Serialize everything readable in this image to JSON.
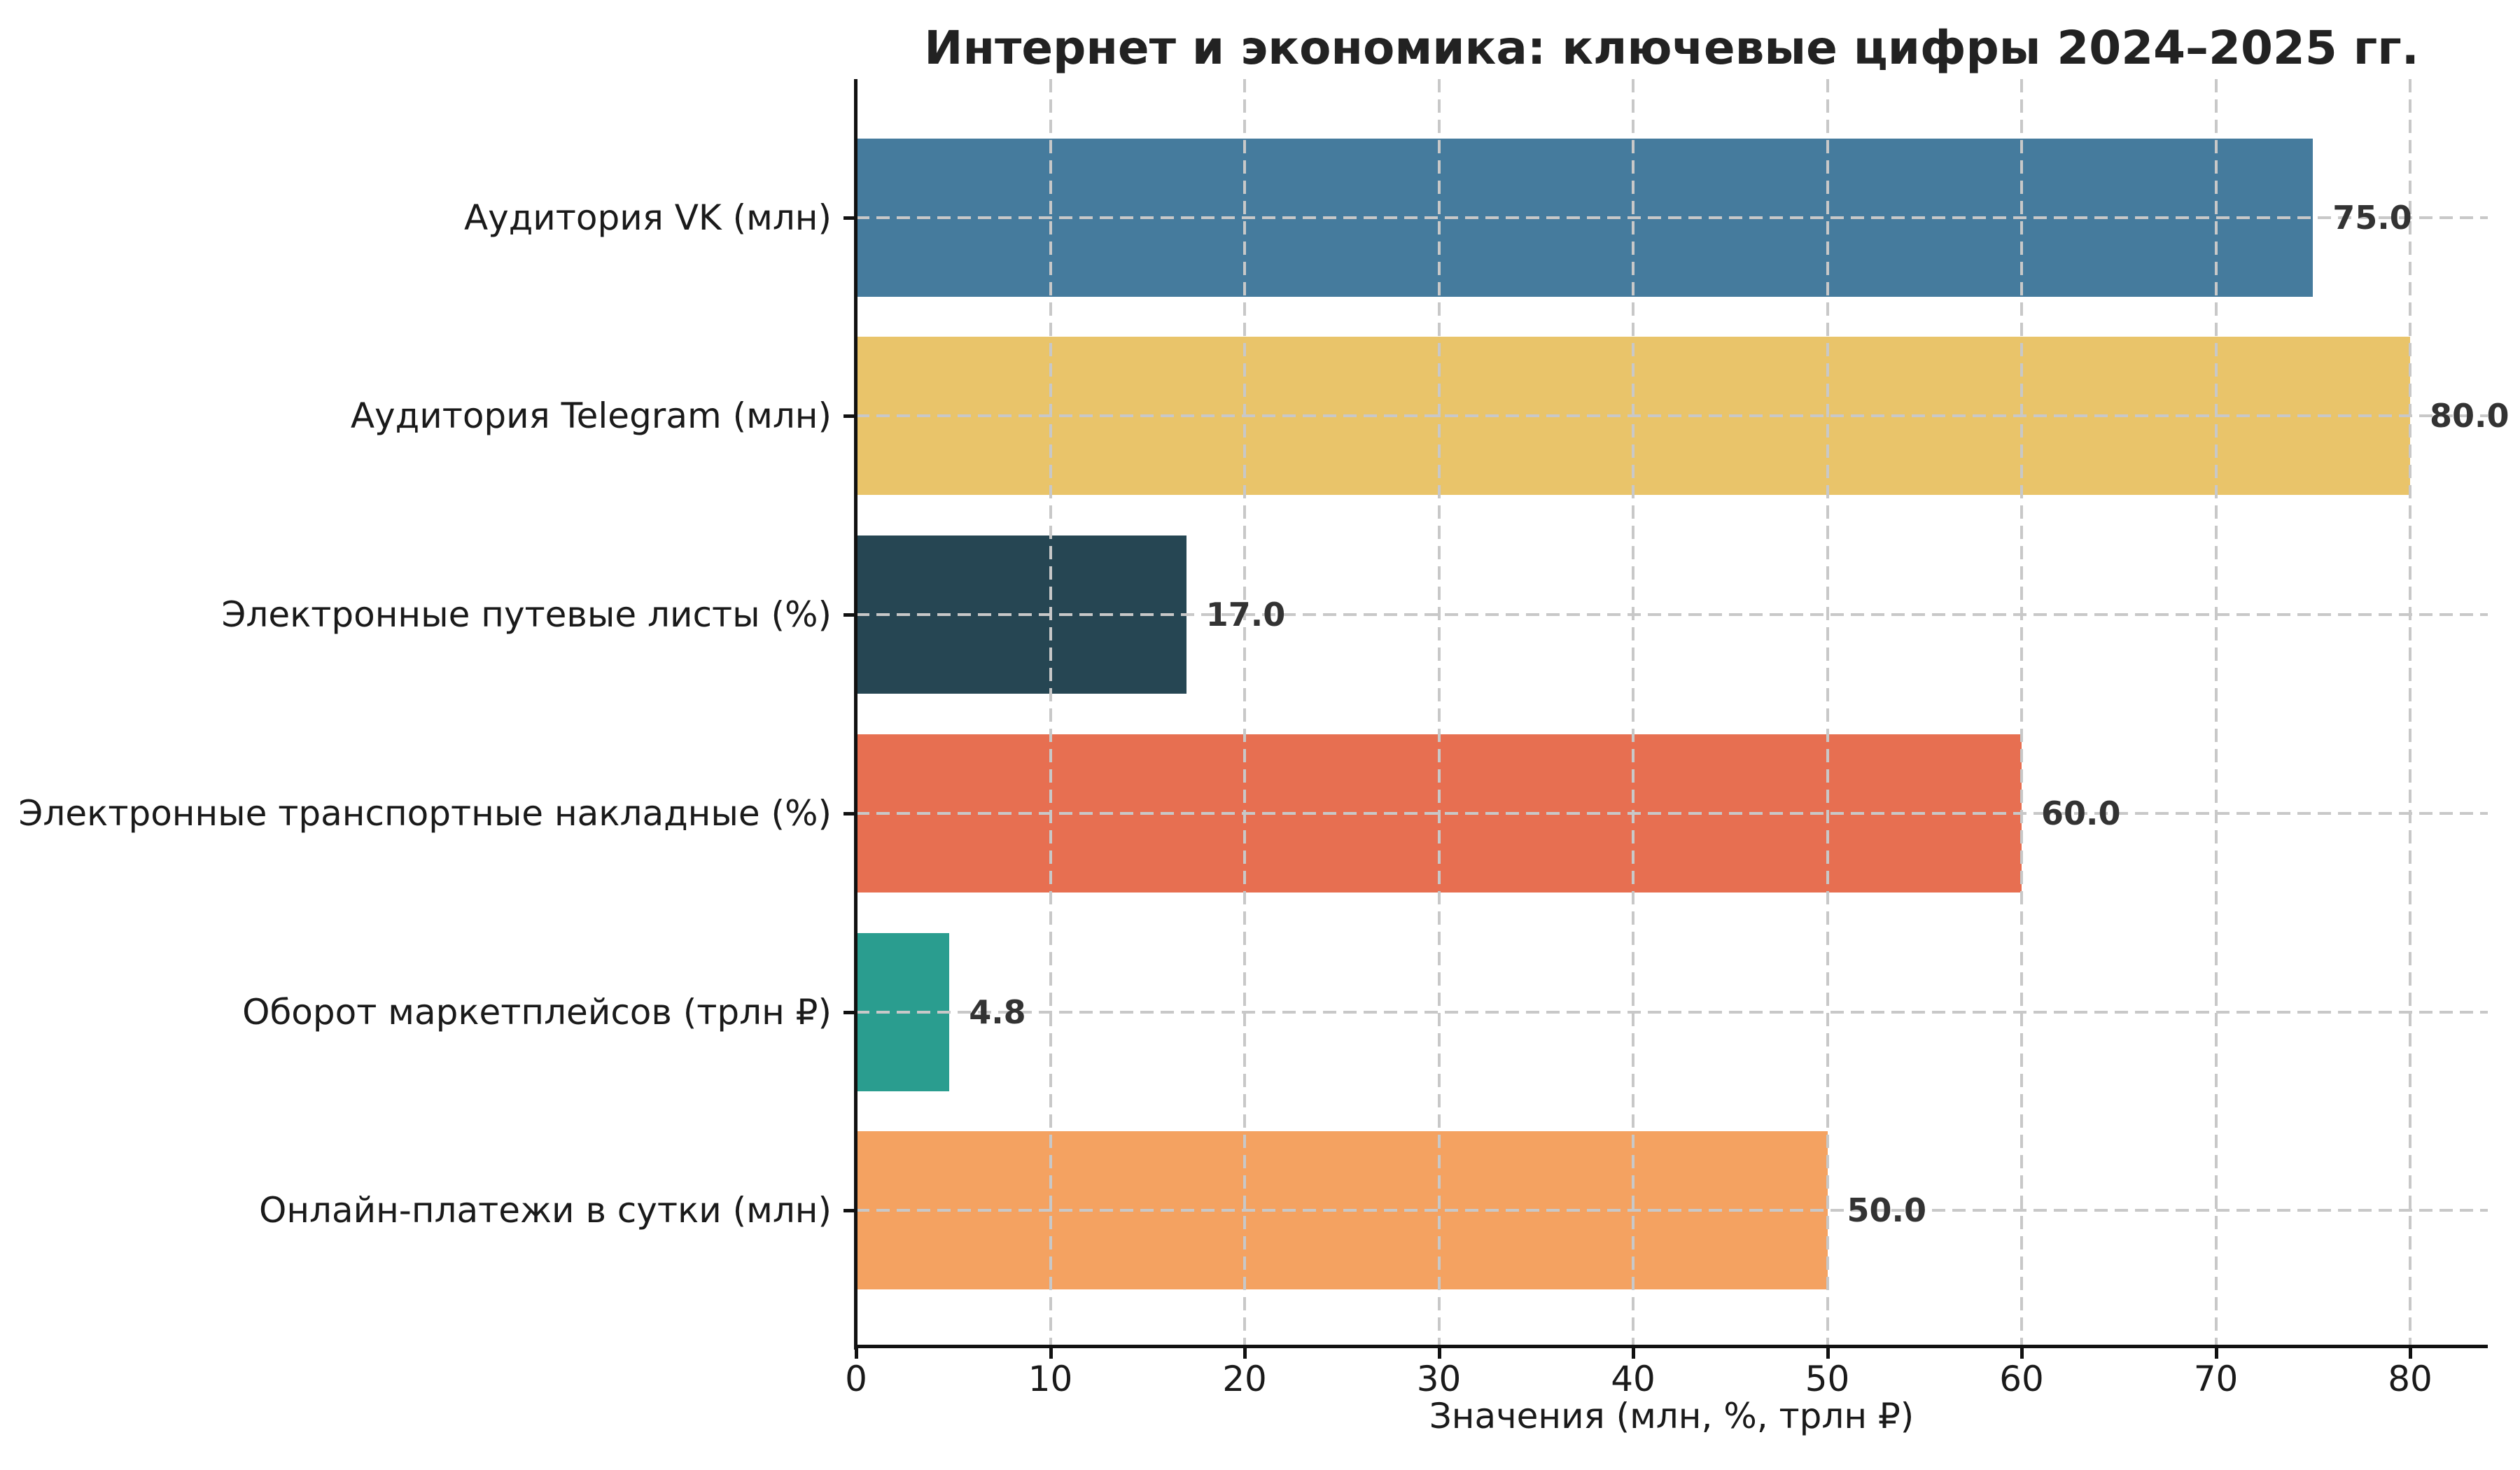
{
  "chart_data": {
    "type": "bar",
    "orientation": "horizontal",
    "title": "Интернет и экономика: ключевые цифры 2024–2025 гг.",
    "xlabel": "Значения (млн, %, трлн ₽)",
    "ylabel": "",
    "categories": [
      "Аудитория VK (млн)",
      "Аудитория Telegram (млн)",
      "Электронные путевые листы (%)",
      "Электронные транспортные накладные (%)",
      "Оборот маркетплейсов (трлн ₽)",
      "Онлайн-платежи в сутки (млн)"
    ],
    "values": [
      75.0,
      80.0,
      17.0,
      60.0,
      4.8,
      50.0
    ],
    "value_labels": [
      "75.0",
      "80.0",
      "17.0",
      "60.0",
      "4.8",
      "50.0"
    ],
    "bar_colors": [
      "#457b9d",
      "#e9c46a",
      "#264653",
      "#e76f51",
      "#2a9d8f",
      "#f4a261"
    ],
    "x_ticks": [
      0,
      10,
      20,
      30,
      40,
      50,
      60,
      70,
      80
    ],
    "x_tick_labels": [
      "0",
      "10",
      "20",
      "30",
      "40",
      "50",
      "60",
      "70",
      "80"
    ],
    "xlim": [
      0,
      84
    ],
    "grid": {
      "on": true,
      "style": "dashed",
      "color": "#c8c8c8",
      "above_bars": true
    },
    "legend": {
      "visible": false
    },
    "colors": {
      "background": "#ffffff",
      "axis": "#111111",
      "tick_label": "#1a1a1a",
      "title": "#222222",
      "value_label": "#333333",
      "grid": "#c8c8c8"
    }
  }
}
